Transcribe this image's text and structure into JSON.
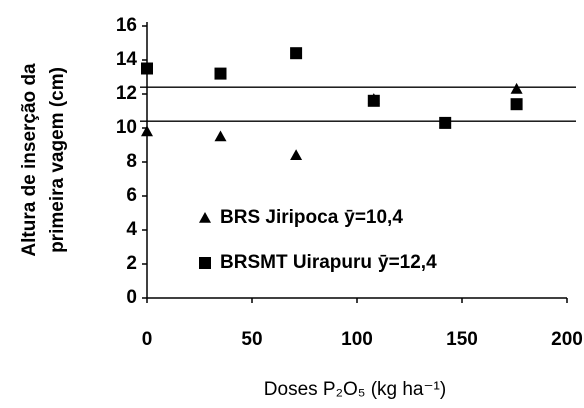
{
  "chart_data": {
    "type": "scatter",
    "xlabel": "Doses P₂O₅ (kg ha⁻¹)",
    "ylabel": [
      "Altura de inserção da",
      "primeira vagem (cm)"
    ],
    "xlim": [
      0,
      200
    ],
    "xticks": [
      0,
      50,
      100,
      150,
      200
    ],
    "ylim": [
      0,
      16
    ],
    "yticks": [
      0,
      2,
      4,
      6,
      8,
      10,
      12,
      14,
      16
    ],
    "x": [
      0,
      35,
      71,
      108,
      142,
      176
    ],
    "series": [
      {
        "name": "BRS Jiripoca",
        "marker": "triangle",
        "color": "#000000",
        "values": [
          9.8,
          9.5,
          8.4,
          11.7,
          10.3,
          12.3
        ],
        "mean": 10.4,
        "mean_label": "ȳ=10,4"
      },
      {
        "name": "BRSMT Uirapuru",
        "marker": "square",
        "color": "#000000",
        "values": [
          13.5,
          13.2,
          14.4,
          11.6,
          10.3,
          11.4
        ],
        "mean": 12.4,
        "mean_label": "ȳ=12,4"
      }
    ]
  }
}
